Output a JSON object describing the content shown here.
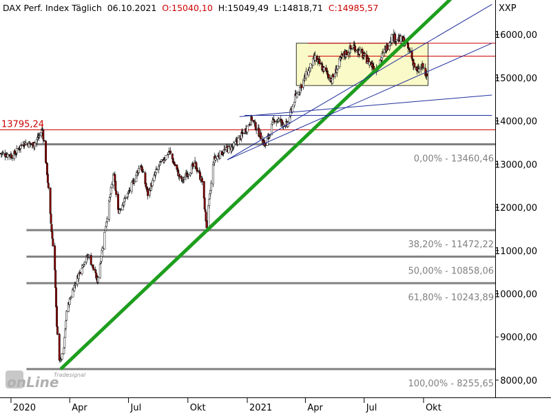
{
  "header": {
    "title": "DAX Perf. Index Täglich",
    "date": "06.10.2021",
    "open": "O:15040,10",
    "high": "H:15049,49",
    "low": "L:14818,71",
    "close": "C:14985,57"
  },
  "symbol": "XXP",
  "watermark": {
    "line1": "Tradesignal",
    "line2": "onLine"
  },
  "colors": {
    "candle_up": "#ffffff",
    "candle_down": "#8b0000",
    "trend_green": "#1e9e1e",
    "fib_gray": "#808080",
    "resistance_red": "#cc0000",
    "channel_blue": "#1f2f9c",
    "box_fill": "#fafac8",
    "box_border": "#333333"
  },
  "chart_data": {
    "type": "candlestick",
    "title": "DAX Perf. Index Täglich",
    "y_axis": {
      "range": [
        7600,
        16800
      ],
      "ticks": [
        8000,
        9000,
        10000,
        11000,
        12000,
        13000,
        14000,
        15000,
        16000
      ],
      "tick_labels": [
        "8000,00",
        "9000,00",
        "10000,00",
        "11000,00",
        "12000,00",
        "13000,00",
        "14000,00",
        "15000,00",
        "16000,00"
      ],
      "position": "right"
    },
    "x_axis": {
      "labels": [
        "2020",
        "Apr",
        "Jul",
        "Okt",
        "2021",
        "Apr",
        "Jul",
        "Okt"
      ],
      "label_dates": [
        "2020-01-01",
        "2020-04-01",
        "2020-07-01",
        "2020-10-01",
        "2021-01-01",
        "2021-04-01",
        "2021-07-01",
        "2021-10-01"
      ],
      "range": [
        "2019-12-15",
        "2022-01-20"
      ]
    },
    "close_path": [
      [
        "2019-12-15",
        13250
      ],
      [
        "2020-01-05",
        13200
      ],
      [
        "2020-01-20",
        13500
      ],
      [
        "2020-02-05",
        13450
      ],
      [
        "2020-02-19",
        13790
      ],
      [
        "2020-02-26",
        12800
      ],
      [
        "2020-03-02",
        11800
      ],
      [
        "2020-03-09",
        10600
      ],
      [
        "2020-03-12",
        9200
      ],
      [
        "2020-03-16",
        8500
      ],
      [
        "2020-03-18",
        8440
      ],
      [
        "2020-03-23",
        8740
      ],
      [
        "2020-03-27",
        9600
      ],
      [
        "2020-04-06",
        10100
      ],
      [
        "2020-04-20",
        10650
      ],
      [
        "2020-04-30",
        10900
      ],
      [
        "2020-05-14",
        10300
      ],
      [
        "2020-05-27",
        11600
      ],
      [
        "2020-06-08",
        12800
      ],
      [
        "2020-06-15",
        11900
      ],
      [
        "2020-06-30",
        12300
      ],
      [
        "2020-07-20",
        13000
      ],
      [
        "2020-07-31",
        12300
      ],
      [
        "2020-08-15",
        12900
      ],
      [
        "2020-09-02",
        13300
      ],
      [
        "2020-09-21",
        12600
      ],
      [
        "2020-10-12",
        13000
      ],
      [
        "2020-10-23",
        12600
      ],
      [
        "2020-10-30",
        11560
      ],
      [
        "2020-11-10",
        13100
      ],
      [
        "2020-11-25",
        13300
      ],
      [
        "2020-12-10",
        13400
      ],
      [
        "2020-12-28",
        13760
      ],
      [
        "2021-01-08",
        14050
      ],
      [
        "2021-01-29",
        13430
      ],
      [
        "2021-02-12",
        14050
      ],
      [
        "2021-03-04",
        13900
      ],
      [
        "2021-03-15",
        14500
      ],
      [
        "2021-03-31",
        15000
      ],
      [
        "2021-04-16",
        15450
      ],
      [
        "2021-05-12",
        14950
      ],
      [
        "2021-05-28",
        15500
      ],
      [
        "2021-06-15",
        15730
      ],
      [
        "2021-07-19",
        15200
      ],
      [
        "2021-08-13",
        15950
      ],
      [
        "2021-08-31",
        15850
      ],
      [
        "2021-09-10",
        15600
      ],
      [
        "2021-09-20",
        15130
      ],
      [
        "2021-09-30",
        15260
      ],
      [
        "2021-10-06",
        14985
      ]
    ],
    "horizontal_lines": [
      {
        "name": "resistance",
        "value": 13795.24,
        "label": "13795,24"
      },
      {
        "name": "fib-0",
        "value": 13460.46,
        "label": "0,00% - 13460,46"
      },
      {
        "name": "fib-382",
        "value": 11472.22,
        "label": "38,20% - 11472,22"
      },
      {
        "name": "fib-50",
        "value": 10858.06,
        "label": "50,00% - 10858,06"
      },
      {
        "name": "fib-618",
        "value": 10243.89,
        "label": "61,80% - 10243,89"
      },
      {
        "name": "fib-100",
        "value": 8255.65,
        "label": "100,00% - 8255,65"
      },
      {
        "name": "top-box-upper",
        "value": 15800
      },
      {
        "name": "top-box-mid",
        "value": 15500
      }
    ],
    "trendlines": [
      {
        "name": "main-uptrend",
        "from": [
          "2020-03-18",
          8255
        ],
        "to": [
          "2021-09-15",
          16000
        ]
      },
      {
        "name": "upper-fan-line",
        "from": [
          "2020-12-01",
          13100
        ],
        "to": [
          "2022-01-15",
          16700
        ]
      },
      {
        "name": "mid-fan-line",
        "from": [
          "2020-12-01",
          13100
        ],
        "to": [
          "2022-01-15",
          15800
        ]
      },
      {
        "name": "lower-fan-line",
        "from": [
          "2020-12-20",
          14100
        ],
        "to": [
          "2022-01-15",
          14600
        ]
      },
      {
        "name": "flat-channel-line",
        "from": [
          "2020-12-28",
          14130
        ],
        "to": [
          "2022-01-15",
          14130
        ]
      }
    ],
    "consolidation_box": {
      "from": "2021-03-18",
      "to": "2021-10-08",
      "low": 14820,
      "high": 15800
    }
  }
}
